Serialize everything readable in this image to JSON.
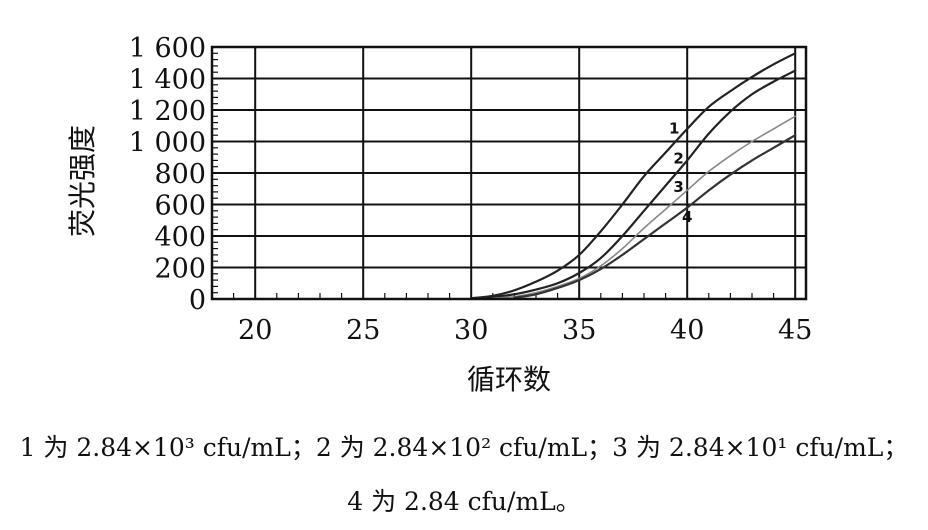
{
  "chart_data": {
    "type": "line",
    "title": "",
    "xlabel": "循环数",
    "ylabel": "荧光强度",
    "xlim": [
      18,
      45.5
    ],
    "ylim": [
      0,
      1600
    ],
    "xticks": [
      20,
      25,
      30,
      35,
      40,
      45
    ],
    "yticks": [
      0,
      200,
      400,
      600,
      800,
      1000,
      1200,
      1400,
      1600
    ],
    "ytick_labels": [
      "0",
      "200",
      "400",
      "600",
      "800",
      "1 000",
      "1 200",
      "1 400",
      "1 600"
    ],
    "grid": true,
    "series": [
      {
        "name": "1",
        "color": "#222222",
        "x": [
          30,
          31,
          32,
          33,
          34,
          35,
          36,
          37,
          38,
          39,
          40,
          41,
          42,
          43,
          44,
          45
        ],
        "y": [
          5,
          20,
          55,
          110,
          180,
          280,
          430,
          600,
          780,
          930,
          1080,
          1220,
          1320,
          1410,
          1490,
          1560
        ]
      },
      {
        "name": "2",
        "color": "#222222",
        "x": [
          30,
          31,
          32,
          33,
          34,
          35,
          36,
          37,
          38,
          39,
          40,
          41,
          42,
          43,
          44,
          45
        ],
        "y": [
          3,
          12,
          30,
          60,
          100,
          165,
          260,
          400,
          560,
          720,
          880,
          1050,
          1190,
          1300,
          1380,
          1450
        ]
      },
      {
        "name": "3",
        "color": "#888888",
        "x": [
          31,
          32,
          33,
          34,
          35,
          36,
          37,
          38,
          39,
          40,
          41,
          42,
          43,
          44,
          45
        ],
        "y": [
          5,
          15,
          40,
          80,
          130,
          210,
          320,
          450,
          570,
          690,
          810,
          910,
          1000,
          1080,
          1160
        ]
      },
      {
        "name": "4",
        "color": "#333333",
        "x": [
          32,
          33,
          34,
          35,
          36,
          37,
          38,
          39,
          40,
          41,
          42,
          43,
          44,
          45
        ],
        "y": [
          8,
          30,
          70,
          120,
          190,
          280,
          380,
          480,
          580,
          690,
          790,
          880,
          960,
          1040
        ]
      }
    ],
    "series_labels": [
      {
        "text": "1",
        "x": 39.4,
        "y": 1050
      },
      {
        "text": "2",
        "x": 39.6,
        "y": 860
      },
      {
        "text": "3",
        "x": 39.6,
        "y": 680
      },
      {
        "text": "4",
        "x": 40.0,
        "y": 490
      }
    ]
  },
  "caption": {
    "line1": "1 为 2.84×10³ cfu/mL；2 为 2.84×10² cfu/mL；3 为 2.84×10¹ cfu/mL；",
    "line2": "4 为 2.84 cfu/mL。"
  }
}
